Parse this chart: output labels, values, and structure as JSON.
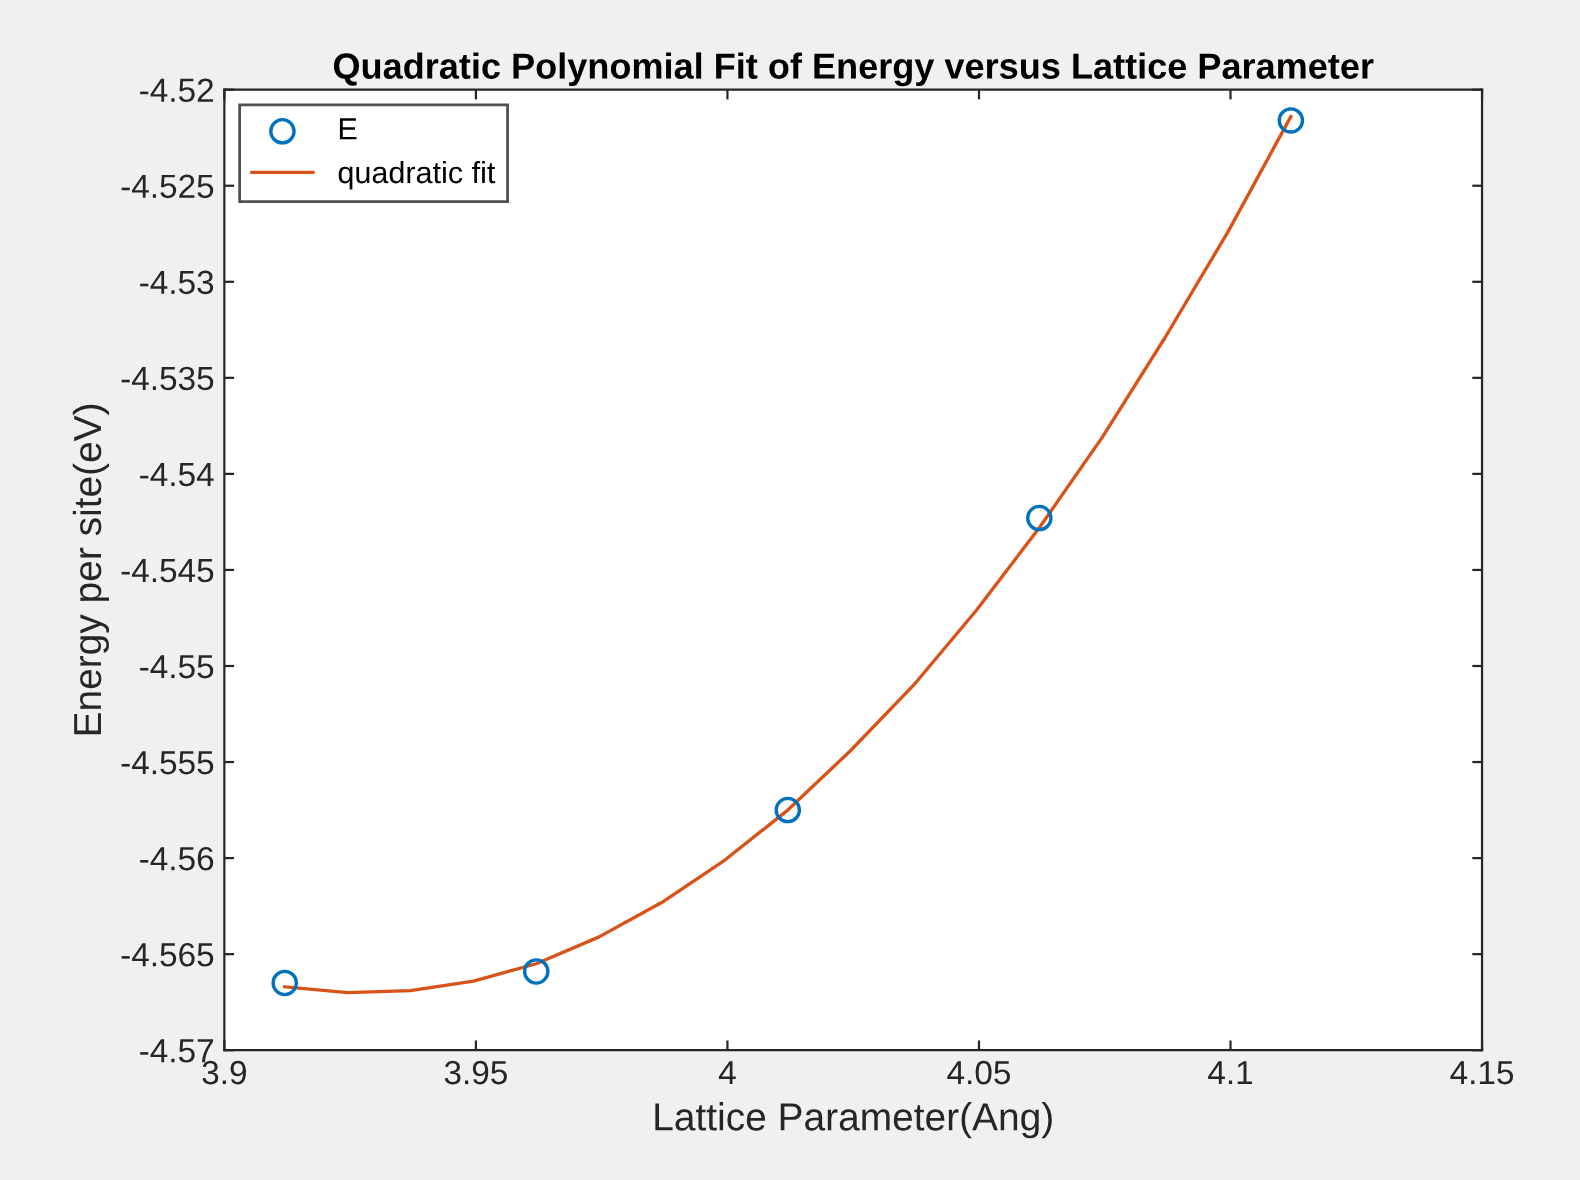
{
  "chart_data": {
    "type": "scatter",
    "title": "Quadratic Polynomial Fit of Energy versus Lattice Parameter",
    "xlabel": "Lattice Parameter(Ang)",
    "ylabel": "Energy per site(eV)",
    "series": [
      {
        "name": "E",
        "marker": "circle",
        "color": "#0072bd",
        "x": [
          3.912,
          3.962,
          4.012,
          4.062,
          4.112
        ],
        "values": [
          -4.5665,
          -4.5659,
          -4.5575,
          -4.5423,
          -4.5216
        ]
      },
      {
        "name": "quadratic fit",
        "type": "line",
        "marker": "none",
        "line_style": "solid",
        "color": "#d95319",
        "x": [
          3.912,
          3.9245,
          3.937,
          3.9495,
          3.962,
          3.9745,
          3.987,
          3.9995,
          4.012,
          4.0245,
          4.037,
          4.0495,
          4.062,
          4.0745,
          4.087,
          4.0995,
          4.112
        ],
        "values": [
          -4.5667,
          -4.567,
          -4.5669,
          -4.5664,
          -4.5655,
          -4.5641,
          -4.5623,
          -4.5601,
          -4.5575,
          -4.5544,
          -4.551,
          -4.5471,
          -4.5428,
          -4.5381,
          -4.5329,
          -4.5274,
          -4.5214
        ]
      }
    ],
    "xlim": [
      3.9,
      4.15
    ],
    "xticks": [
      3.9,
      3.95,
      4,
      4.05,
      4.1,
      4.15
    ],
    "ylim": [
      -4.57,
      -4.52
    ],
    "yticks": [
      -4.57,
      -4.565,
      -4.56,
      -4.555,
      -4.55,
      -4.545,
      -4.54,
      -4.535,
      -4.53,
      -4.525,
      -4.52
    ],
    "grid": false,
    "legend": "top left"
  }
}
